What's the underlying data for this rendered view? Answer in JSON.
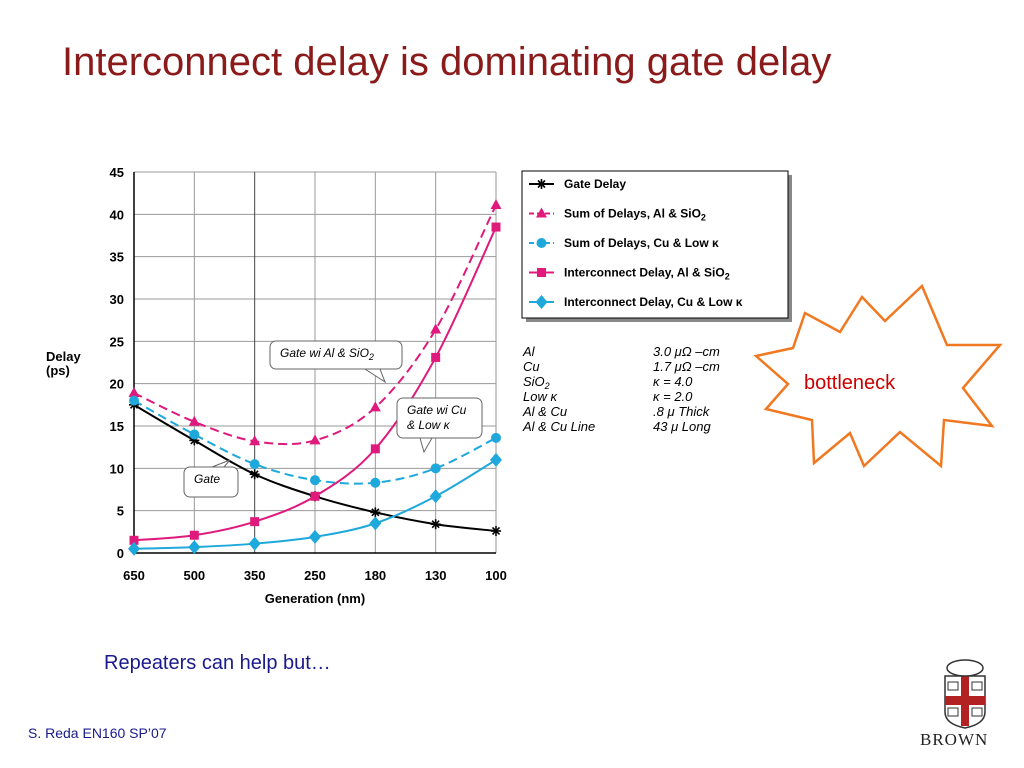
{
  "slide": {
    "title": "Interconnect delay is dominating gate delay",
    "subtitle": "Repeaters can help but…",
    "footer": "S. Reda EN160 SP’07",
    "burst_label": "bottleneck",
    "logo_text": "BROWN"
  },
  "chart_data": {
    "type": "line",
    "xlabel": "Generation (nm)",
    "ylabel": [
      "Delay",
      "(ps)"
    ],
    "categories": [
      "650",
      "500",
      "350",
      "250",
      "180",
      "130",
      "100"
    ],
    "ylim": [
      0,
      45
    ],
    "yticks": [
      0,
      5,
      10,
      15,
      20,
      25,
      30,
      35,
      40,
      45
    ],
    "grid": true,
    "legend_position": "top-right",
    "series": [
      {
        "name": "Gate Delay",
        "values": [
          17.5,
          13.3,
          9.3,
          6.7,
          4.8,
          3.4,
          2.6
        ],
        "color": "#000000",
        "marker": "star",
        "dash": "solid"
      },
      {
        "name": "Sum of Delays, Al & SiO2",
        "values": [
          18.9,
          15.5,
          13.2,
          13.3,
          17.2,
          26.4,
          41.1
        ],
        "color": "#e0197d",
        "marker": "triangle",
        "dash": "dashed"
      },
      {
        "name": "Sum of Delays, Cu & Low κ",
        "values": [
          18.0,
          14.0,
          10.5,
          8.6,
          8.3,
          10.0,
          13.6
        ],
        "color": "#1fa8dc",
        "marker": "circle",
        "dash": "dashed"
      },
      {
        "name": "Interconnect Delay, Al & SiO2",
        "values": [
          1.5,
          2.1,
          3.7,
          6.7,
          12.3,
          23.1,
          38.5
        ],
        "color": "#e0197d",
        "marker": "square",
        "dash": "solid"
      },
      {
        "name": "Interconnect Delay, Cu & Low κ",
        "values": [
          0.5,
          0.7,
          1.1,
          1.9,
          3.5,
          6.7,
          11.0
        ],
        "color": "#1fa8dc",
        "marker": "diamond",
        "dash": "solid"
      }
    ],
    "annotations": [
      {
        "text": "Gate wi Al & SiO2"
      },
      {
        "text": [
          "Gate wi Cu",
          "& Low κ"
        ]
      },
      {
        "text": "Gate"
      }
    ],
    "materials": [
      {
        "name": "Al",
        "value": "3.0 μΩ –cm"
      },
      {
        "name": "Cu",
        "value": "1.7 μΩ –cm"
      },
      {
        "name": "SiO2",
        "value": "κ = 4.0"
      },
      {
        "name": "Low κ",
        "value": "κ = 2.0"
      },
      {
        "name": "Al & Cu",
        "value": ".8 μ  Thick"
      },
      {
        "name": "Al & Cu Line",
        "value": "43 μ  Long"
      }
    ]
  }
}
